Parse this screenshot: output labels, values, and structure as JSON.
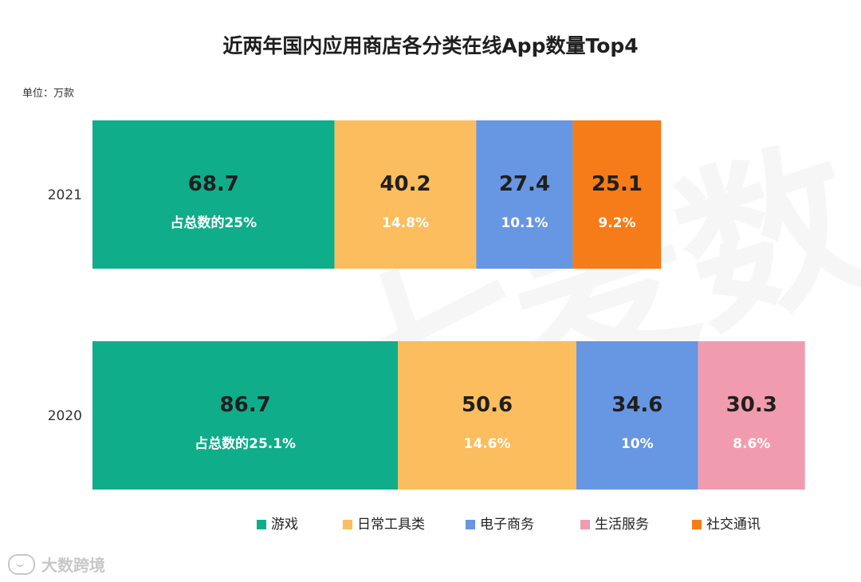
{
  "title": "近两年国内应用商店各分类在线App数量Top4",
  "unit_label": "单位：万款",
  "watermark_text": "大数跨境",
  "chart_data": {
    "type": "bar",
    "orientation": "horizontal",
    "stacked": true,
    "title": "近两年国内应用商店各分类在线App数量Top4",
    "categories": [
      "2021",
      "2020"
    ],
    "series": [
      {
        "name": "游戏",
        "color": "#0fad8a",
        "values": [
          68.7,
          86.7
        ],
        "labels": [
          "占总数的25%",
          "占总数的25.1%"
        ]
      },
      {
        "name": "日常工具类",
        "color": "#fcbd5e",
        "values": [
          40.2,
          50.6
        ],
        "labels": [
          "14.8%",
          "14.6%"
        ]
      },
      {
        "name": "电子商务",
        "color": "#6796e2",
        "values": [
          27.4,
          34.6
        ],
        "labels": [
          "10.1%",
          "10%"
        ]
      },
      {
        "name": "生活服务",
        "color": "#f19cae",
        "values": [
          0,
          30.3
        ],
        "labels": [
          "",
          "8.6%"
        ]
      },
      {
        "name": "社交通讯",
        "color": "#f57c18",
        "values": [
          25.1,
          0
        ],
        "labels": [
          "9.2%",
          ""
        ]
      }
    ],
    "legend_position": "bottom",
    "grid": false
  }
}
